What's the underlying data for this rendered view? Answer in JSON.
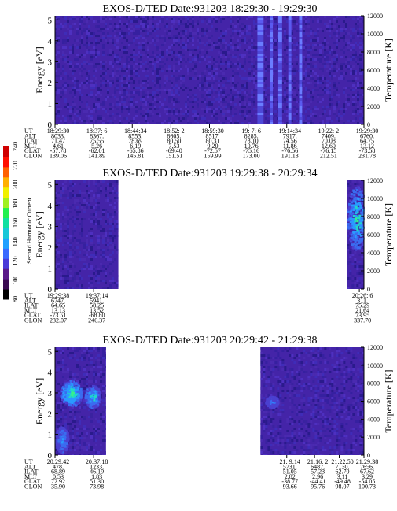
{
  "colors": {
    "background": "#4424a8",
    "colorbar": [
      "#000000",
      "#3a0a52",
      "#5a1a8a",
      "#4a3ad8",
      "#3a6aff",
      "#1fa0ff",
      "#18c8d8",
      "#10e0a0",
      "#20f050",
      "#a0f020",
      "#f0f000",
      "#ffb000",
      "#ff6000",
      "#ff1000",
      "#d00000"
    ]
  },
  "colorbar": {
    "label": "Second Harmonic Current",
    "ticks": [
      "80",
      "100",
      "120",
      "140",
      "160",
      "180",
      "200",
      "220",
      "240"
    ]
  },
  "chart_data": [
    {
      "type": "heatmap",
      "title": "EXOS-D/TED   Date:931203   18:29:30 - 19:29:30",
      "ylabel": "Energy [eV]",
      "ylabel_right": "Temperature [K]",
      "yticks": [
        "0",
        "1",
        "2",
        "3",
        "4",
        "5"
      ],
      "yticks_right": [
        "0",
        "2000",
        "4000",
        "6000",
        "8000",
        "10000",
        "12000"
      ],
      "ylim": [
        0,
        5.2
      ],
      "ylim_right": [
        0,
        12000
      ],
      "data_segments": [
        [
          0,
          1
        ]
      ],
      "bright_bands": [
        [
          0.655,
          0.675
        ],
        [
          0.695,
          0.705
        ],
        [
          0.72,
          0.735
        ],
        [
          0.755,
          0.765
        ],
        [
          0.79,
          0.8
        ]
      ],
      "hotspots": [],
      "table": {
        "labels": [
          "UT",
          "ALT",
          "ILAT",
          "MLT",
          "GLAT",
          "GLON"
        ],
        "columns": [
          {
            "pos": 0.0,
            "values": [
              "18:29:30",
              "8033.",
              "71.47",
              "4.61",
              "-57.78",
              "139.06"
            ]
          },
          {
            "pos": 0.125,
            "values": [
              "18:37: 6",
              "8367.",
              "75.55",
              "5.26",
              "-62.01",
              "141.89"
            ]
          },
          {
            "pos": 0.25,
            "values": [
              "18:44:34",
              "8553.",
              "78.69",
              "6.19",
              "-65.86",
              "145.81"
            ]
          },
          {
            "pos": 0.375,
            "values": [
              "18:52: 2",
              "8605.",
              "80.50",
              "7.53",
              "-69.40",
              "151.51"
            ]
          },
          {
            "pos": 0.5,
            "values": [
              "18:59:30",
              "8517.",
              "80.31",
              "9.20",
              "-72.57",
              "159.99"
            ]
          },
          {
            "pos": 0.625,
            "values": [
              "19: 7: 6",
              "8285.",
              "78.10",
              "10.76",
              "-75.16",
              "173.00"
            ]
          },
          {
            "pos": 0.75,
            "values": [
              "19:14:34",
              "7917.",
              "74.56",
              "11.86",
              "-76.56",
              "191.13"
            ]
          },
          {
            "pos": 0.875,
            "values": [
              "19:22: 2",
              "7409.",
              "70.08",
              "12.60",
              "-76.15",
              "212.51"
            ]
          },
          {
            "pos": 1.0,
            "values": [
              "19:29:30",
              "6760.",
              "64.75",
              "13.12",
              "-73.58",
              "231.78"
            ]
          }
        ]
      }
    },
    {
      "type": "heatmap",
      "title": "EXOS-D/TED   Date:931203   19:29:38 - 20:29:34",
      "ylabel": "Energy [eV]",
      "ylabel_right": "Temperature [K]",
      "yticks": [
        "0",
        "1",
        "2",
        "3",
        "4",
        "5"
      ],
      "yticks_right": [
        "0",
        "2000",
        "4000",
        "6000",
        "8000",
        "10000",
        "12000"
      ],
      "ylim": [
        0,
        5.2
      ],
      "ylim_right": [
        0,
        12000
      ],
      "data_segments": [
        [
          0,
          0.205
        ],
        [
          0.945,
          1
        ]
      ],
      "bright_bands": [],
      "hotspots": [
        {
          "cx": 0.975,
          "cy": 0.35,
          "rx": 0.03,
          "ry": 0.3,
          "level": 0.55
        }
      ],
      "table": {
        "labels": [
          "UT",
          "ALT",
          "ILAT",
          "MLT",
          "GLAT",
          "GLON"
        ],
        "columns": [
          {
            "pos": 0.0,
            "values": [
              "19:29:38",
              "6747.",
              "64.65",
              "13.13",
              "-73.51",
              "232.07"
            ]
          },
          {
            "pos": 0.125,
            "values": [
              "19:37:14",
              "5941.",
              "58.25",
              "13.52",
              "-68.80",
              "246.37"
            ]
          },
          {
            "pos": 0.985,
            "values": [
              "20:26: 6",
              "311.",
              "75.29",
              "21.64",
              "73.95",
              "337.70"
            ]
          }
        ]
      }
    },
    {
      "type": "heatmap",
      "title": "EXOS-D/TED   Date:931203   20:29:42 - 21:29:38",
      "ylabel": "Energy [eV]",
      "ylabel_right": "Temperature [K]",
      "yticks": [
        "0",
        "1",
        "2",
        "3",
        "4",
        "5"
      ],
      "yticks_right": [
        "0",
        "2000",
        "4000",
        "6000",
        "8000",
        "10000",
        "12000"
      ],
      "ylim": [
        0,
        5.2
      ],
      "ylim_right": [
        0,
        12000
      ],
      "data_segments": [
        [
          0,
          0.165
        ],
        [
          0.665,
          1
        ]
      ],
      "bright_bands": [],
      "hotspots": [
        {
          "cx": 0.05,
          "cy": 0.42,
          "rx": 0.035,
          "ry": 0.12,
          "level": 0.6
        },
        {
          "cx": 0.12,
          "cy": 0.45,
          "rx": 0.025,
          "ry": 0.1,
          "level": 0.5
        },
        {
          "cx": 0.02,
          "cy": 0.85,
          "rx": 0.02,
          "ry": 0.12,
          "level": 0.4
        },
        {
          "cx": 0.7,
          "cy": 0.5,
          "rx": 0.02,
          "ry": 0.05,
          "level": 0.35
        }
      ],
      "table": {
        "labels": [
          "UT",
          "ALT",
          "ILAT",
          "MLT",
          "GLAT",
          "GLON"
        ],
        "columns": [
          {
            "pos": 0.0,
            "values": [
              "20:29:42",
              "478.",
              "68.89",
              "0.53",
              "72.92",
              "35.90"
            ]
          },
          {
            "pos": 0.125,
            "values": [
              "20:37:18",
              "1233.",
              "46.19",
              "1.83",
              "51.30",
              "73.98"
            ]
          },
          {
            "pos": 0.75,
            "values": [
              "21: 9:14",
              "5731.",
              "51.05",
              "2.82",
              "-38.77",
              "93.66"
            ]
          },
          {
            "pos": 0.84,
            "values": [
              "21:16: 2",
              "6487.",
              "57.23",
              "2.96",
              "-44.41",
              "95.76"
            ]
          },
          {
            "pos": 0.92,
            "values": [
              "21:22:50",
              "7130.",
              "62.70",
              "3.11",
              "-49.48",
              "98.07"
            ]
          },
          {
            "pos": 1.0,
            "values": [
              "21:29:38",
              "7656.",
              "67.62",
              "3.29",
              "-54.05",
              "100.73"
            ]
          }
        ]
      }
    }
  ]
}
